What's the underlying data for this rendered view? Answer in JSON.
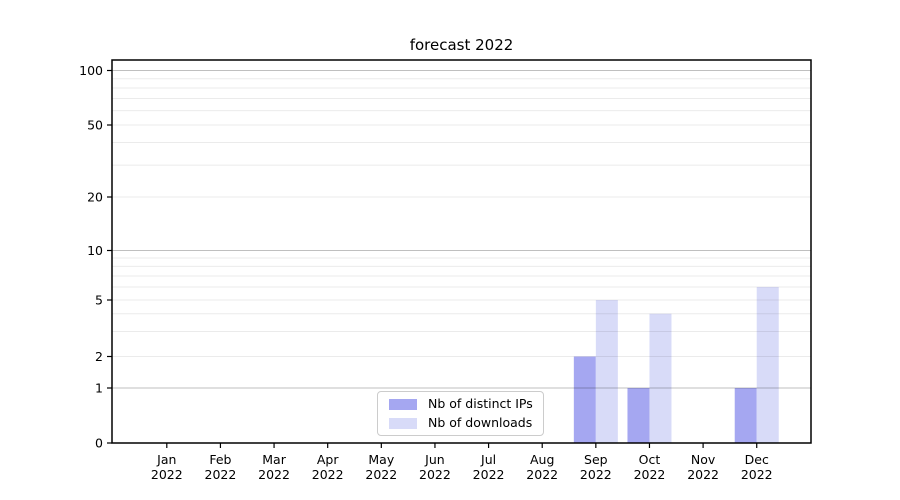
{
  "figure": {
    "background": "#ffffff"
  },
  "chart_data": {
    "type": "bar",
    "title": "forecast 2022",
    "xlabel": "",
    "ylabel": "",
    "x_tick_months": [
      "Jan",
      "Feb",
      "Mar",
      "Apr",
      "May",
      "Jun",
      "Jul",
      "Aug",
      "Sep",
      "Oct",
      "Nov",
      "Dec"
    ],
    "x_tick_year": "2022",
    "series": [
      {
        "name": "Nb of distinct IPs",
        "color": "#a5a7f1",
        "values": [
          0,
          0,
          0,
          0,
          0,
          0,
          0,
          0,
          2,
          1,
          0,
          1
        ]
      },
      {
        "name": "Nb of downloads",
        "color": "#d8dbf8",
        "values": [
          0,
          0,
          0,
          0,
          0,
          0,
          0,
          0,
          5,
          4,
          0,
          6
        ]
      }
    ],
    "yscale": "symlog-like",
    "ylim": [
      0,
      110
    ],
    "y_ticks": [
      0,
      1,
      2,
      5,
      10,
      20,
      50,
      100
    ],
    "y_major_gridlines": [
      1,
      10,
      100
    ],
    "y_minor_gridlines": [
      3,
      4,
      6,
      7,
      8,
      9,
      30,
      40,
      60,
      70,
      80,
      90
    ],
    "grid": true,
    "legend_position": "lower center"
  },
  "style_colors": {
    "bar_ips": "#a5a7f1",
    "bar_downloads": "#d8dbf8",
    "grid_major": "rgba(0,0,0,0.25)",
    "grid_minor": "rgba(0,0,0,0.08)",
    "spine": "#000000",
    "text": "#000000"
  }
}
